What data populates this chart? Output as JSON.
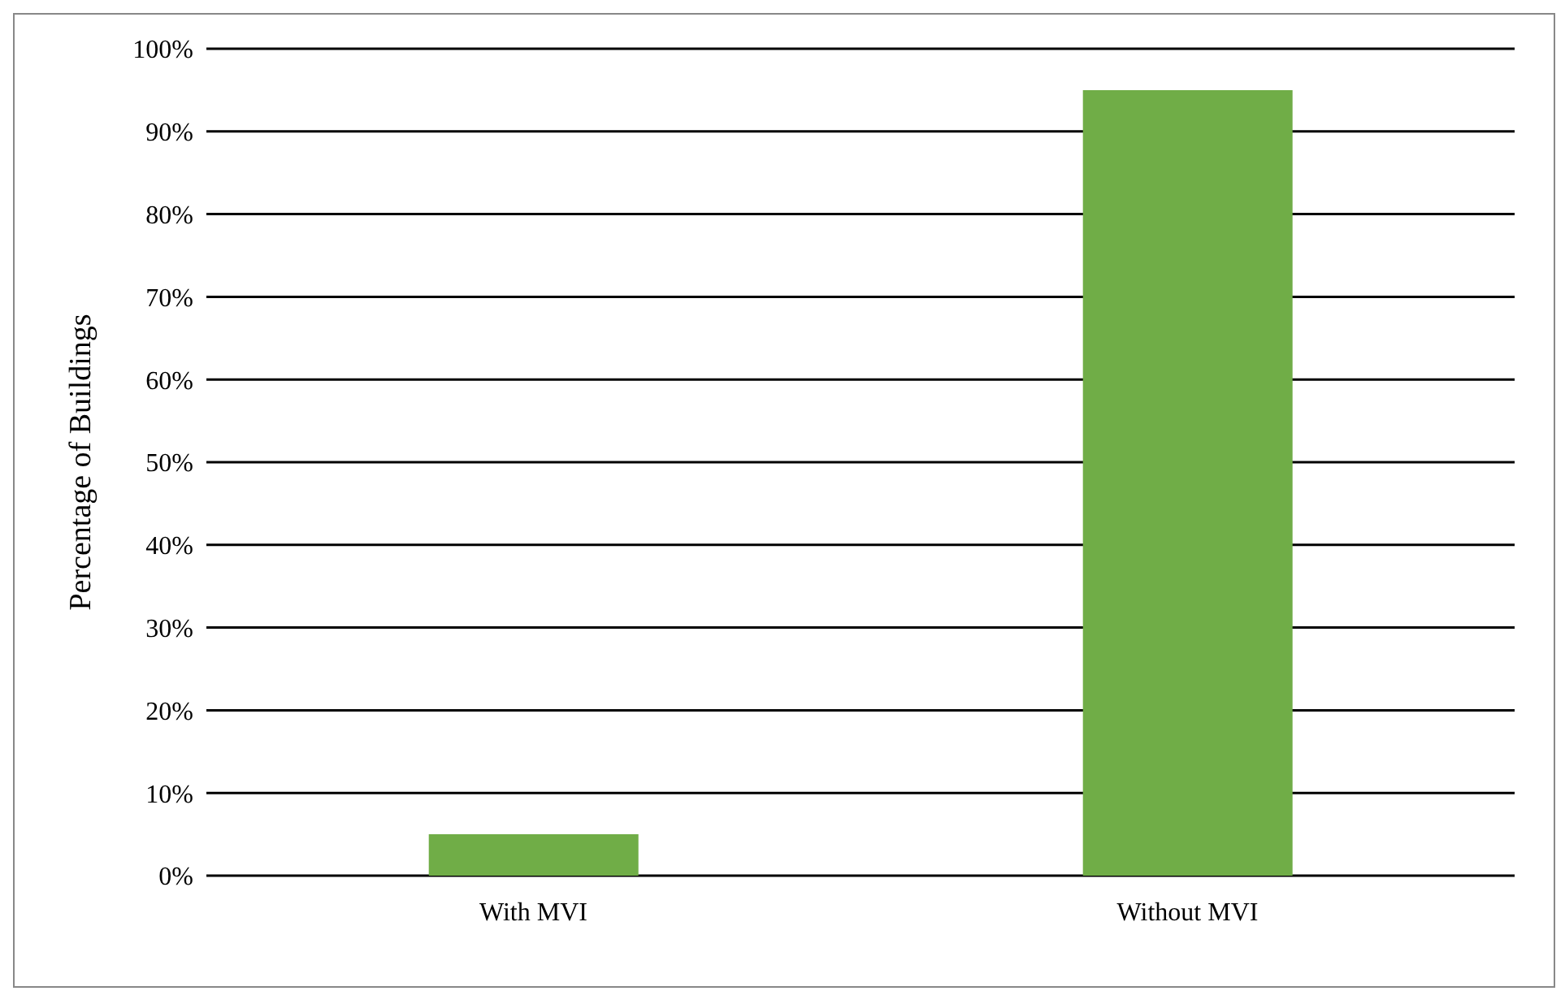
{
  "chart_data": {
    "type": "bar",
    "ylabel": "Percentage of Buildings",
    "categories": [
      "With MVI",
      "Without MVI"
    ],
    "values": [
      5,
      95
    ],
    "color": "#70ad47",
    "ylim": [
      0,
      100
    ],
    "yticks": [
      {
        "value": 0,
        "label": "0%"
      },
      {
        "value": 10,
        "label": "10%"
      },
      {
        "value": 20,
        "label": "20%"
      },
      {
        "value": 30,
        "label": "30%"
      },
      {
        "value": 40,
        "label": "40%"
      },
      {
        "value": 50,
        "label": "50%"
      },
      {
        "value": 60,
        "label": "60%"
      },
      {
        "value": 70,
        "label": "70%"
      },
      {
        "value": 80,
        "label": "80%"
      },
      {
        "value": 90,
        "label": "90%"
      },
      {
        "value": 100,
        "label": "100%"
      }
    ],
    "grid": "y"
  }
}
